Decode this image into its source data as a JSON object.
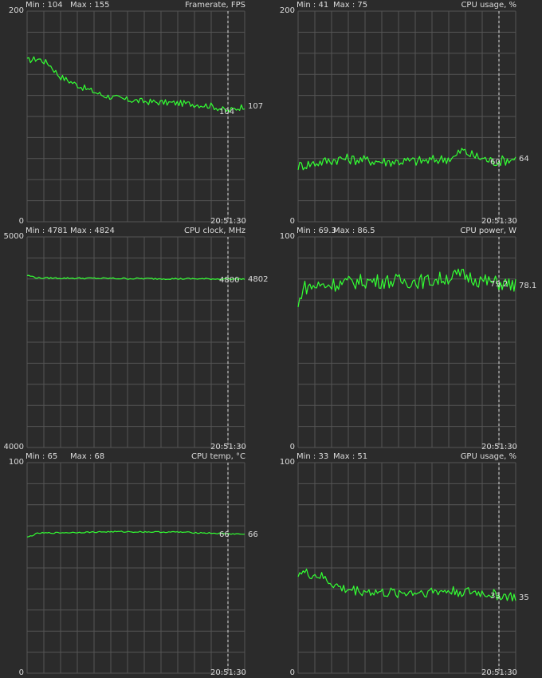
{
  "colors": {
    "background": "#2b2b2b",
    "grid": "#555555",
    "line": "#33ff33",
    "text": "#dcdcdc",
    "marker": "#e6e6e6"
  },
  "time_label": "20:51:30",
  "chart_data": [
    {
      "type": "line",
      "title": "Framerate, FPS",
      "min_label": "Min : 104",
      "max_label": "Max : 155",
      "ymax_label": "200",
      "ymin_label": "0",
      "ylim": [
        0,
        200
      ],
      "current_label": "104",
      "end_label": "107",
      "anchors": [
        [
          0,
          153
        ],
        [
          0.05,
          155
        ],
        [
          0.1,
          150
        ],
        [
          0.15,
          138
        ],
        [
          0.25,
          128
        ],
        [
          0.35,
          120
        ],
        [
          0.45,
          116
        ],
        [
          0.55,
          114
        ],
        [
          0.65,
          113
        ],
        [
          0.75,
          112
        ],
        [
          0.85,
          110
        ],
        [
          0.92,
          105
        ],
        [
          0.95,
          107
        ],
        [
          1,
          110
        ]
      ],
      "noise": 3,
      "grid": true
    },
    {
      "type": "line",
      "title": "CPU usage, %",
      "min_label": "Min : 41",
      "max_label": "Max : 75",
      "ymax_label": "200",
      "ymin_label": "0",
      "ylim": [
        0,
        200
      ],
      "current_label": "60",
      "end_label": "64",
      "anchors": [
        [
          0,
          53
        ],
        [
          0.2,
          60
        ],
        [
          0.4,
          57
        ],
        [
          0.6,
          58
        ],
        [
          0.72,
          61
        ],
        [
          0.75,
          68
        ],
        [
          0.8,
          63
        ],
        [
          0.9,
          57
        ],
        [
          1,
          60
        ]
      ],
      "noise": 5,
      "grid": true
    },
    {
      "type": "line",
      "title": "CPU clock, MHz",
      "min_label": "Min : 4781",
      "max_label": "Max : 4824",
      "ymax_label": "5000",
      "ymin_label": "4000",
      "ylim": [
        4000,
        5000
      ],
      "current_label": "4800",
      "end_label": "4802",
      "anchors": [
        [
          0,
          4818
        ],
        [
          0.05,
          4805
        ],
        [
          0.5,
          4802
        ],
        [
          1,
          4800
        ]
      ],
      "noise": 4,
      "grid": true
    },
    {
      "type": "line",
      "title": "CPU power, W",
      "min_label": "Min : 69.3",
      "max_label": "Max : 86.5",
      "ymax_label": "100",
      "ymin_label": "0",
      "ylim": [
        0,
        100
      ],
      "current_label": "79.2",
      "end_label": "78.1",
      "anchors": [
        [
          0,
          66
        ],
        [
          0.02,
          76
        ],
        [
          0.3,
          79
        ],
        [
          0.6,
          79
        ],
        [
          0.75,
          82
        ],
        [
          0.85,
          79
        ],
        [
          1,
          77
        ]
      ],
      "noise": 3.5,
      "grid": true
    },
    {
      "type": "line",
      "title": "CPU temp, °C",
      "min_label": "Min : 65",
      "max_label": "Max : 68",
      "ymax_label": "100",
      "ymin_label": "0",
      "ylim": [
        0,
        100
      ],
      "current_label": "66",
      "end_label": "66",
      "anchors": [
        [
          0,
          64.5
        ],
        [
          0.05,
          66.5
        ],
        [
          0.4,
          67.2
        ],
        [
          0.7,
          67
        ],
        [
          0.85,
          66.5
        ],
        [
          1,
          66
        ]
      ],
      "noise": 0.3,
      "grid": true
    },
    {
      "type": "line",
      "title": "GPU usage, %",
      "min_label": "Min : 33",
      "max_label": "Max : 51",
      "ymax_label": "100",
      "ymin_label": "0",
      "ylim": [
        0,
        100
      ],
      "current_label": "33",
      "end_label": "35",
      "anchors": [
        [
          0,
          48
        ],
        [
          0.1,
          46
        ],
        [
          0.2,
          40
        ],
        [
          0.4,
          38
        ],
        [
          0.7,
          39
        ],
        [
          0.85,
          38
        ],
        [
          1,
          36
        ]
      ],
      "noise": 2.5,
      "grid": true
    }
  ]
}
